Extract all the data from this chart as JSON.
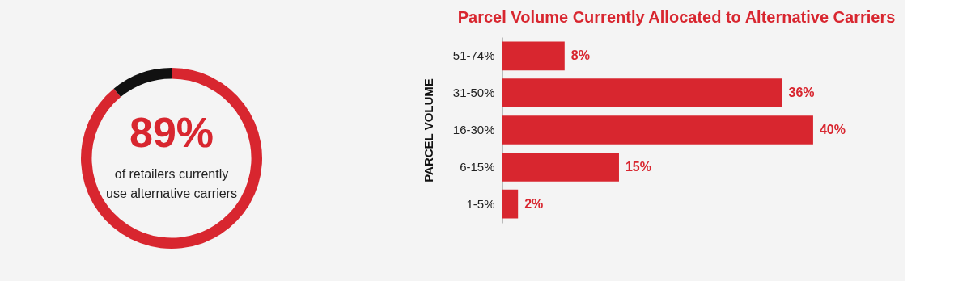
{
  "chart_data": [
    {
      "type": "donut",
      "categories": [
        null,
        null
      ],
      "values": [
        89,
        11
      ],
      "colors": [
        "#d8262f",
        "#111111"
      ],
      "value_labels": [
        "89%",
        null
      ],
      "annotations": [
        "of retailers currently\nuse alternative carriers"
      ]
    },
    {
      "type": "bar",
      "orientation": "horizontal",
      "title": "Parcel Volume Currently Allocated to Alternative Carriers",
      "ylabel": "PARCEL VOLUME",
      "categories": [
        "51-74%",
        "31-50%",
        "16-30%",
        "6-15%",
        "1-5%"
      ],
      "values": [
        8,
        36,
        40,
        15,
        2
      ],
      "color": "#d8262f",
      "value_labels": [
        "8%",
        "36%",
        "40%",
        "15%",
        "2%"
      ],
      "tick_labels": "y",
      "legend": false,
      "grid": false
    }
  ]
}
